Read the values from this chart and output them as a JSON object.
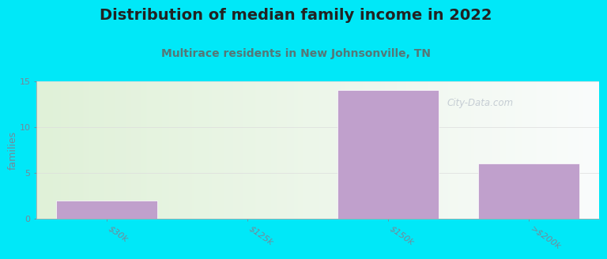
{
  "title": "Distribution of median family income in 2022",
  "subtitle": "Multirace residents in New Johnsonville, TN",
  "title_fontsize": 14,
  "subtitle_fontsize": 10,
  "subtitle_color": "#557777",
  "title_color": "#222222",
  "categories": [
    "$30k",
    "$125k",
    "$150k",
    ">$200k"
  ],
  "values": [
    2,
    0,
    14,
    6
  ],
  "bar_color": "#c0a0cc",
  "bar_edgecolor": "#ffffff",
  "ylabel": "families",
  "ylabel_fontsize": 9,
  "ylim": [
    0,
    15
  ],
  "yticks": [
    0,
    5,
    10,
    15
  ],
  "background_color": "#00e8f8",
  "watermark": "City-Data.com",
  "tick_label_color": "#778899",
  "tick_label_fontsize": 8,
  "axis_color": "#aaaaaa",
  "grid_color": "#dddddd"
}
